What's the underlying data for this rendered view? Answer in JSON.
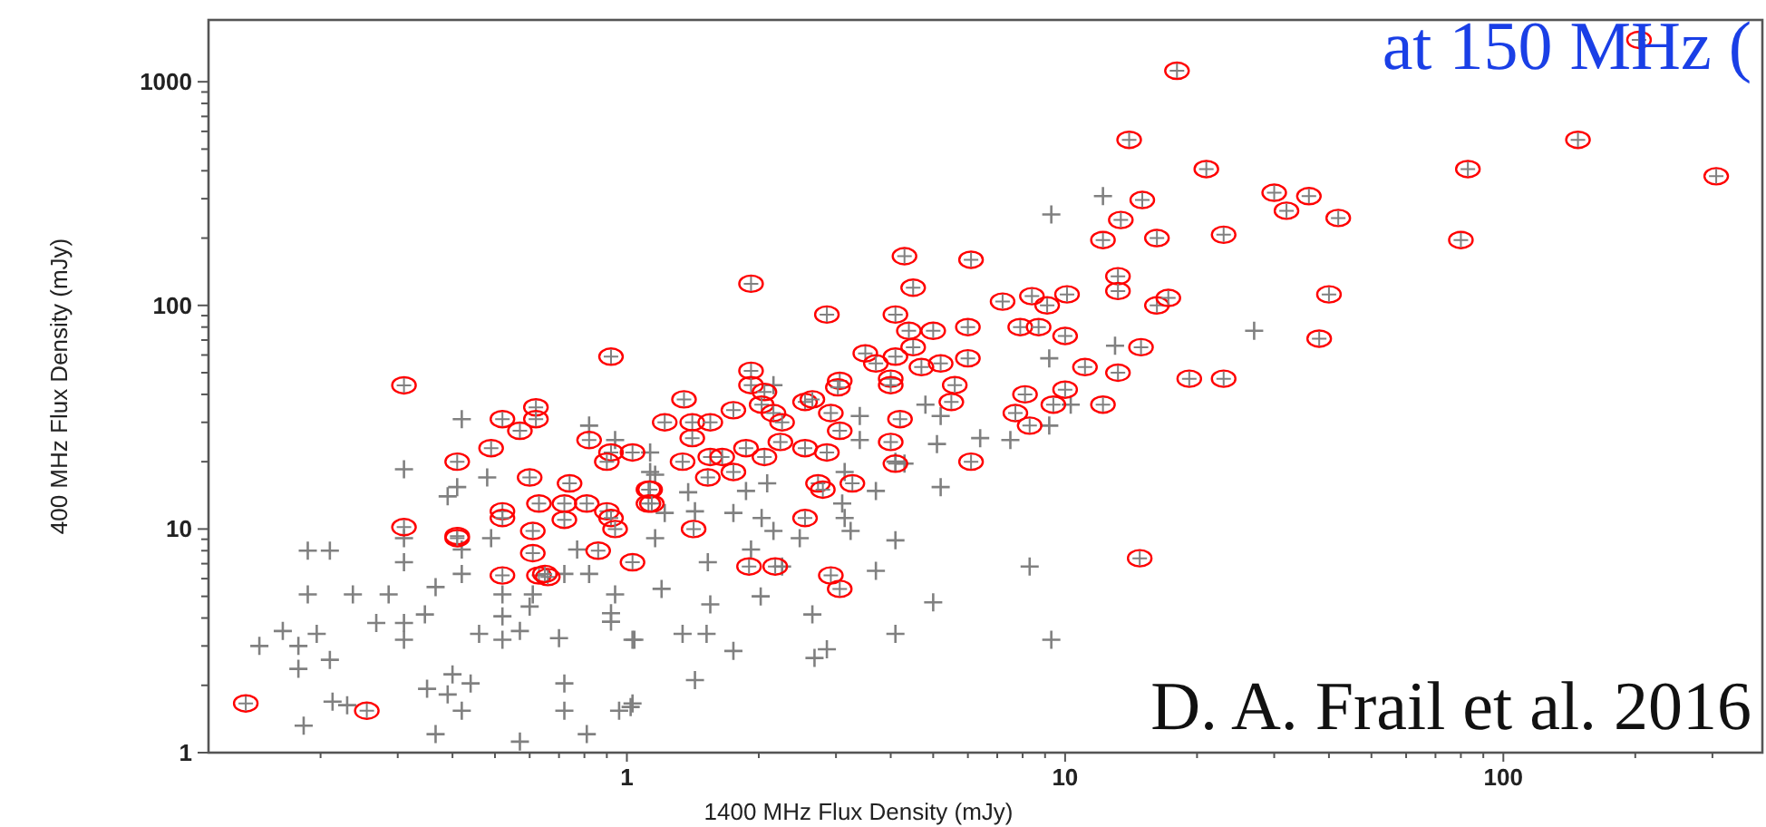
{
  "chart_data": {
    "type": "scatter",
    "title": "at 150 MHz (",
    "xlabel": "1400 MHz Flux Density (mJy)",
    "ylabel": "400 MHz Flux Density (mJy)",
    "annotations": [
      "D. A. Frail et al. 2016"
    ],
    "log": "xy",
    "grid": false,
    "xlim": [
      0.111,
      390
    ],
    "ylim": [
      1,
      1890
    ],
    "xticks": [
      {
        "value": 0.2,
        "label": null
      },
      {
        "value": 0.3,
        "label": null
      },
      {
        "value": 0.4,
        "label": null
      },
      {
        "value": 0.5,
        "label": null
      },
      {
        "value": 0.6,
        "label": null
      },
      {
        "value": 0.7,
        "label": null
      },
      {
        "value": 0.8,
        "label": null
      },
      {
        "value": 0.9,
        "label": null
      },
      1,
      {
        "value": 2,
        "label": null
      },
      {
        "value": 3,
        "label": null
      },
      {
        "value": 4,
        "label": null
      },
      {
        "value": 5,
        "label": null
      },
      {
        "value": 6,
        "label": null
      },
      {
        "value": 7,
        "label": null
      },
      {
        "value": 8,
        "label": null
      },
      {
        "value": 9,
        "label": null
      },
      10,
      {
        "value": 20,
        "label": null
      },
      {
        "value": 30,
        "label": null
      },
      {
        "value": 40,
        "label": null
      },
      {
        "value": 50,
        "label": null
      },
      {
        "value": 60,
        "label": null
      },
      {
        "value": 70,
        "label": null
      },
      {
        "value": 80,
        "label": null
      },
      {
        "value": 90,
        "label": null
      },
      100,
      {
        "value": 200,
        "label": null
      },
      {
        "value": 300,
        "label": null
      }
    ],
    "yticks": [
      1,
      {
        "value": 2,
        "label": null
      },
      {
        "value": 3,
        "label": null
      },
      {
        "value": 4,
        "label": null
      },
      {
        "value": 5,
        "label": null
      },
      {
        "value": 6,
        "label": null
      },
      {
        "value": 7,
        "label": null
      },
      {
        "value": 8,
        "label": null
      },
      {
        "value": 9,
        "label": null
      },
      10,
      {
        "value": 20,
        "label": null
      },
      {
        "value": 30,
        "label": null
      },
      {
        "value": 40,
        "label": null
      },
      {
        "value": 50,
        "label": null
      },
      {
        "value": 60,
        "label": null
      },
      {
        "value": 70,
        "label": null
      },
      {
        "value": 80,
        "label": null
      },
      {
        "value": 90,
        "label": null
      },
      100,
      {
        "value": 200,
        "label": null
      },
      {
        "value": 300,
        "label": null
      },
      {
        "value": 400,
        "label": null
      },
      {
        "value": 500,
        "label": null
      },
      {
        "value": 600,
        "label": null
      },
      {
        "value": 700,
        "label": null
      },
      {
        "value": 800,
        "label": null
      },
      {
        "value": 900,
        "label": null
      },
      1000
    ],
    "series": [
      {
        "color": "#808080",
        "marker": "cross",
        "x": [
          0.187,
          0.21,
          0.187,
          0.237,
          0.286,
          0.164,
          0.145,
          0.178,
          0.196,
          0.178,
          0.21,
          0.183,
          0.213,
          0.23,
          0.268,
          0.31,
          0.31,
          0.346,
          0.31,
          0.31,
          0.31,
          0.366,
          0.4,
          0.35,
          0.39,
          0.44,
          0.42,
          0.366,
          0.46,
          0.42,
          0.42,
          0.49,
          0.41,
          0.39,
          0.42,
          0.48,
          0.52,
          0.52,
          0.52,
          0.57,
          0.6,
          0.61,
          0.7,
          0.72,
          0.72,
          0.57,
          0.81,
          0.96,
          1.03,
          0.92,
          0.92,
          1.03,
          0.94,
          0.82,
          0.82,
          0.94,
          0.77,
          0.72,
          1.13,
          1.02,
          1.43,
          1.75,
          2.68,
          2.86,
          4.1,
          9.3,
          5.0,
          2.65,
          2.02,
          1.55,
          1.04,
          1.34,
          1.52,
          1.2,
          1.53,
          1.92,
          2.26,
          3.7,
          4.1,
          8.3,
          3.24,
          3.14,
          2.48,
          2.16,
          1.75,
          2.03,
          1.43,
          1.22,
          1.16,
          1.38,
          1.87,
          2.09,
          3.1,
          3.7,
          5.2,
          3.14,
          4.3,
          5.1,
          4.1,
          6.4,
          7.5,
          9.2,
          5.2,
          4.8,
          9.2,
          2.16,
          3.4,
          3.4,
          1.16,
          1.13,
          12.2,
          9.3,
          13,
          27,
          10.3
        ],
        "values": [
          8.0,
          8.0,
          5.1,
          5.1,
          5.1,
          3.5,
          3.0,
          3.0,
          3.4,
          2.37,
          2.6,
          1.32,
          1.69,
          1.63,
          3.8,
          3.8,
          3.2,
          4.15,
          18.5,
          9.1,
          7.1,
          5.5,
          2.24,
          1.93,
          1.82,
          2.04,
          1.54,
          1.21,
          3.4,
          6.3,
          8.1,
          9.1,
          15.4,
          14,
          31,
          17,
          5.1,
          4.07,
          3.2,
          3.5,
          4.5,
          5.1,
          3.25,
          2.04,
          1.54,
          1.12,
          1.21,
          1.54,
          1.66,
          4.2,
          3.85,
          3.2,
          5.1,
          6.3,
          29,
          25,
          8.1,
          6.3,
          18,
          1.6,
          2.11,
          2.85,
          2.65,
          2.9,
          3.4,
          3.2,
          4.7,
          4.15,
          5.0,
          4.6,
          3.2,
          3.4,
          3.4,
          5.4,
          7.1,
          8.1,
          6.8,
          6.5,
          8.9,
          6.8,
          9.8,
          11.2,
          9.1,
          9.8,
          11.8,
          11.2,
          12,
          11.8,
          9.1,
          14.6,
          14.8,
          16,
          13,
          14.8,
          15.4,
          18,
          19.6,
          24,
          20,
          25.5,
          25,
          29,
          32,
          36,
          58,
          44,
          32,
          25,
          17.5,
          22,
          308,
          255,
          66,
          77,
          36
        ]
      },
      {
        "color": "#ff0000",
        "marker": "circle",
        "x": [
          0.135,
          0.255,
          0.31,
          0.31,
          0.41,
          0.41,
          0.52,
          0.62,
          0.62,
          0.6,
          0.63,
          0.61,
          0.63,
          0.66,
          0.49,
          0.92,
          0.57,
          0.74,
          0.82,
          0.92,
          1.03,
          0.9,
          0.52,
          0.52,
          0.72,
          0.72,
          0.81,
          0.9,
          0.92,
          0.94,
          0.41,
          0.61,
          0.86,
          1.03,
          0.52,
          0.65,
          1.12,
          1.12,
          4.4,
          5.0,
          6.0,
          7.9,
          8.7,
          3.5,
          4.1,
          4.5,
          3.7,
          4.7,
          5.2,
          6.0,
          4.0,
          4.0,
          5.6,
          8.1,
          10,
          5.5,
          9.4,
          7.7,
          8.3,
          1.92,
          1.92,
          2.06,
          2.03,
          3.06,
          3.03,
          2.55,
          2.65,
          1.75,
          1.35,
          1.22,
          1.41,
          1.55,
          2.16,
          2.26,
          2.92,
          3.06,
          4.2,
          1.41,
          1.34,
          1.55,
          1.65,
          1.75,
          1.87,
          2.06,
          2.24,
          2.55,
          2.86,
          1.53,
          4.0,
          4.1,
          6.1,
          2.73,
          2.8,
          3.27,
          1.13,
          1.14,
          2.55,
          1.42,
          1.9,
          2.18,
          2.92,
          3.06,
          18,
          14,
          21,
          15,
          13.4,
          12.2,
          16.2,
          23,
          1.92,
          4.3,
          6.1,
          2.86,
          4.5,
          13.2,
          13.2,
          7.2,
          8.4,
          9.1,
          10.1,
          16.2,
          17.2,
          14.9,
          4.1,
          10,
          83,
          148,
          306,
          204,
          30,
          36,
          32,
          42,
          80,
          40,
          38,
          19.2,
          23,
          11.1,
          13.2,
          12.2,
          14.8
        ],
        "values": [
          1.66,
          1.54,
          43.9,
          10.2,
          20,
          9.3,
          31,
          35,
          31,
          17,
          13,
          7.8,
          6.2,
          6.1,
          23,
          59,
          27.5,
          16,
          25,
          22,
          22,
          20,
          12,
          11.2,
          13,
          11,
          13,
          12,
          11.2,
          10,
          9.1,
          9.8,
          8.0,
          7.1,
          6.2,
          6.3,
          15,
          13,
          77,
          77,
          80,
          80,
          80,
          61,
          59,
          65,
          55,
          53,
          55,
          58,
          47,
          44,
          44,
          40,
          42,
          37,
          36,
          33,
          29,
          51,
          44,
          41,
          36,
          46,
          43,
          37,
          38,
          34,
          38,
          30,
          30,
          30,
          33,
          30,
          33,
          27.5,
          31,
          25.5,
          20,
          21,
          21,
          18,
          23,
          21,
          24.5,
          23,
          22,
          17,
          24.5,
          19.6,
          20,
          16,
          15,
          16,
          15,
          13,
          11.2,
          10,
          6.8,
          6.8,
          6.2,
          5.4,
          1120,
          550,
          407,
          296,
          241,
          196,
          200,
          207,
          125,
          166,
          160,
          91,
          120,
          135,
          116,
          104,
          110,
          100,
          112,
          100,
          108,
          65,
          91,
          73,
          407,
          550,
          378,
          1540,
          319,
          308,
          265,
          246,
          196,
          112,
          71,
          47,
          47,
          53,
          50,
          36,
          7.4
        ]
      }
    ]
  }
}
